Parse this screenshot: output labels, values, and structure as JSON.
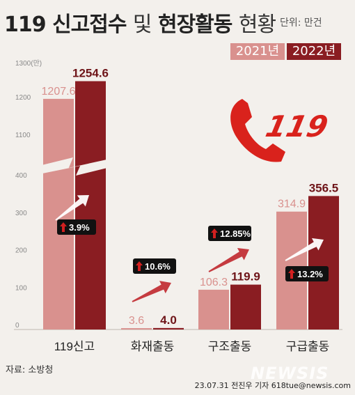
{
  "title_bold_1": "119 신고접수",
  "title_light": "및",
  "title_bold_2": "현장활동",
  "title_light_2": "현황",
  "unit": "단위: 만건",
  "legend": [
    "2021년",
    "2022년"
  ],
  "source": "자료: 소방청",
  "credit": "23.07.31 전진우 기자 618tue@newsis.com",
  "watermark": "NEWSIS",
  "logo_text": "119",
  "colors": {
    "bar_2021": "#d9918e",
    "bar_2022": "#8a1d22",
    "badge": "#111111",
    "arrow_up": "#d22020",
    "phone": "#d9221c"
  },
  "chart_data": {
    "type": "bar",
    "categories": [
      "119신고",
      "화재출동",
      "구조출동",
      "구급출동"
    ],
    "series": [
      {
        "name": "2021년",
        "values": [
          1207.6,
          3.6,
          106.3,
          314.9
        ]
      },
      {
        "name": "2022년",
        "values": [
          1254.6,
          4.0,
          119.9,
          356.5
        ]
      }
    ],
    "data_labels": {
      "2021년": [
        "1207.6",
        "3.6",
        "106.3",
        "314.9"
      ],
      "2022년": [
        "1254.6",
        "4.0",
        "119.9",
        "356.5"
      ]
    },
    "growth_labels": [
      "3.9%",
      "10.6%",
      "12.85%",
      "13.2%"
    ],
    "yticks_lower": [
      0,
      100,
      200,
      300,
      400
    ],
    "yticks_upper": [
      1100,
      1200
    ],
    "ytick_top_label": "1300(만)",
    "y_break": [
      400,
      1100
    ],
    "ylim": [
      0,
      1300
    ],
    "grid": false,
    "legend_position": "top-right"
  }
}
